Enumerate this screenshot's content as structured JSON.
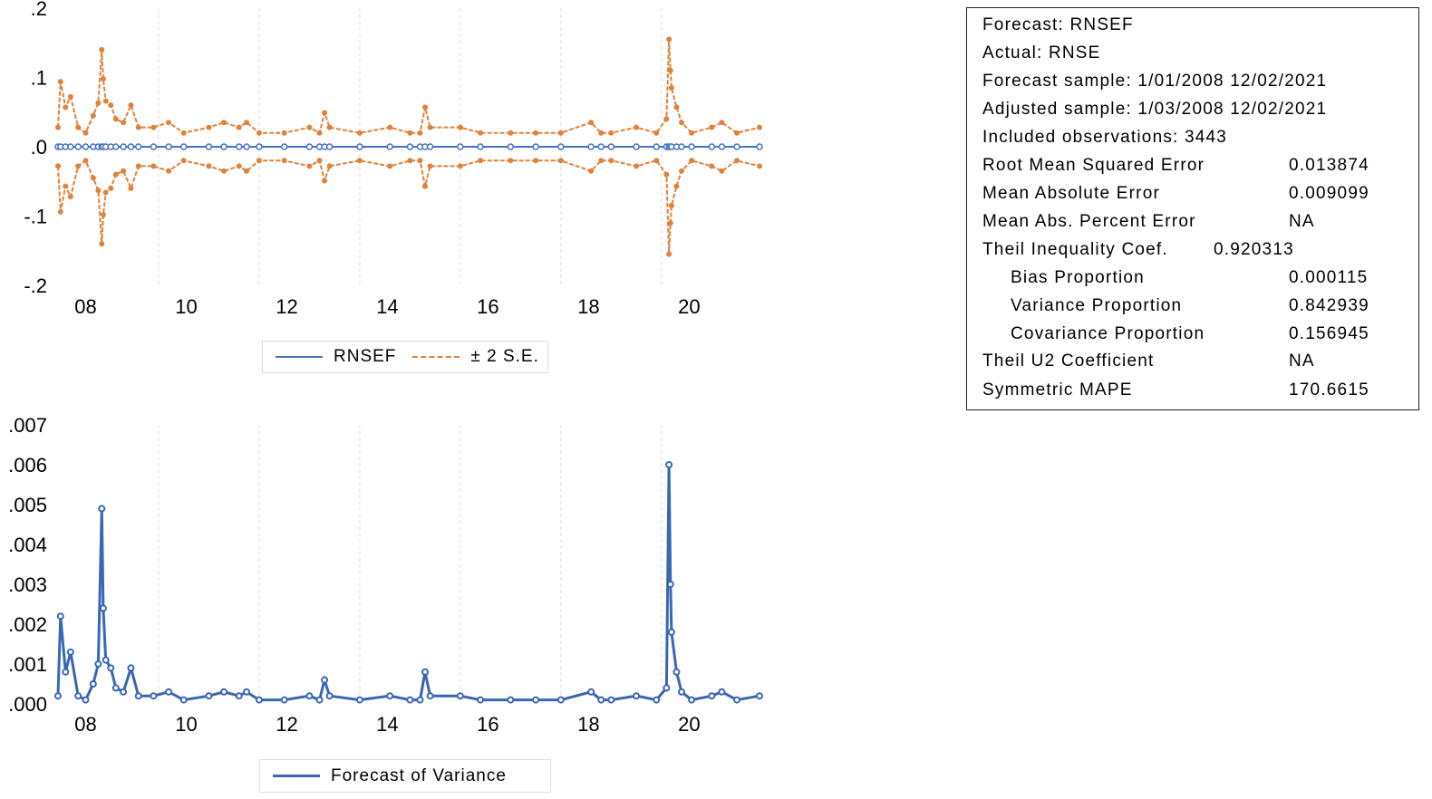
{
  "colors": {
    "forecast": "#4472c4",
    "band": "#e0823a",
    "variance": "#3a66b4",
    "grid": "#dddddd"
  },
  "chart_data": [
    {
      "type": "line",
      "xlim": [
        2008.0,
        2021.95
      ],
      "ylim": [
        -0.2,
        0.2
      ],
      "yticks": [
        ".2",
        ".1",
        ".0",
        "-.1",
        "-.2"
      ],
      "ytick_values": [
        0.2,
        0.1,
        0.0,
        -0.1,
        -0.2
      ],
      "xticks": [
        "08",
        "10",
        "12",
        "14",
        "16",
        "18",
        "20"
      ],
      "grid": "vertical dashed",
      "legend_position": "bottom",
      "x": [
        2008.0,
        2008.05,
        2008.15,
        2008.25,
        2008.4,
        2008.55,
        2008.7,
        2008.8,
        2008.87,
        2008.9,
        2008.95,
        2009.05,
        2009.15,
        2009.3,
        2009.45,
        2009.6,
        2009.9,
        2010.2,
        2010.5,
        2011.0,
        2011.3,
        2011.6,
        2011.75,
        2012.0,
        2012.5,
        2013.0,
        2013.2,
        2013.3,
        2013.4,
        2014.0,
        2014.6,
        2015.0,
        2015.2,
        2015.3,
        2015.4,
        2016.0,
        2016.4,
        2017.0,
        2017.5,
        2018.0,
        2018.6,
        2018.8,
        2019.0,
        2019.5,
        2019.9,
        2020.1,
        2020.15,
        2020.18,
        2020.2,
        2020.3,
        2020.4,
        2020.6,
        2021.0,
        2021.2,
        2021.5,
        2021.95
      ],
      "series": [
        {
          "name": "RNSEF",
          "values": [
            0,
            0,
            0,
            0,
            0,
            0,
            0,
            0,
            0,
            0,
            0,
            0,
            0,
            0,
            0,
            0,
            0,
            0,
            0,
            0,
            0,
            0,
            0,
            0,
            0,
            0,
            0,
            0,
            0,
            0,
            0,
            0,
            0,
            0,
            0,
            0,
            0,
            0,
            0,
            0,
            0,
            0,
            0,
            0,
            0,
            0,
            0,
            0,
            0,
            0,
            0,
            0,
            0,
            0,
            0,
            0
          ]
        },
        {
          "name": "± 2 S.E.",
          "upper": [
            0.028,
            0.094,
            0.057,
            0.072,
            0.028,
            0.02,
            0.045,
            0.063,
            0.14,
            0.098,
            0.066,
            0.06,
            0.04,
            0.035,
            0.06,
            0.028,
            0.028,
            0.035,
            0.02,
            0.028,
            0.035,
            0.028,
            0.035,
            0.02,
            0.02,
            0.028,
            0.02,
            0.049,
            0.028,
            0.02,
            0.028,
            0.02,
            0.02,
            0.057,
            0.028,
            0.028,
            0.02,
            0.02,
            0.02,
            0.02,
            0.035,
            0.02,
            0.02,
            0.028,
            0.02,
            0.04,
            0.155,
            0.11,
            0.085,
            0.057,
            0.035,
            0.02,
            0.028,
            0.035,
            0.02,
            0.028
          ]
        }
      ]
    },
    {
      "type": "line",
      "xlim": [
        2008.0,
        2021.95
      ],
      "ylim": [
        0.0,
        0.007
      ],
      "yticks": [
        ".007",
        ".006",
        ".005",
        ".004",
        ".003",
        ".002",
        ".001",
        ".000"
      ],
      "ytick_values": [
        0.007,
        0.006,
        0.005,
        0.004,
        0.003,
        0.002,
        0.001,
        0.0
      ],
      "xticks": [
        "08",
        "10",
        "12",
        "14",
        "16",
        "18",
        "20"
      ],
      "grid": "vertical dashed",
      "legend_position": "bottom",
      "x": [
        2008.0,
        2008.05,
        2008.15,
        2008.25,
        2008.4,
        2008.55,
        2008.7,
        2008.8,
        2008.87,
        2008.9,
        2008.95,
        2009.05,
        2009.15,
        2009.3,
        2009.45,
        2009.6,
        2009.9,
        2010.2,
        2010.5,
        2011.0,
        2011.3,
        2011.6,
        2011.75,
        2012.0,
        2012.5,
        2013.0,
        2013.2,
        2013.3,
        2013.4,
        2014.0,
        2014.6,
        2015.0,
        2015.2,
        2015.3,
        2015.4,
        2016.0,
        2016.4,
        2017.0,
        2017.5,
        2018.0,
        2018.6,
        2018.8,
        2019.0,
        2019.5,
        2019.9,
        2020.1,
        2020.15,
        2020.18,
        2020.2,
        2020.3,
        2020.4,
        2020.6,
        2021.0,
        2021.2,
        2021.5,
        2021.95
      ],
      "series": [
        {
          "name": "Forecast of Variance",
          "values": [
            0.0002,
            0.0022,
            0.0008,
            0.0013,
            0.0002,
            0.0001,
            0.0005,
            0.001,
            0.0049,
            0.0024,
            0.0011,
            0.0009,
            0.0004,
            0.0003,
            0.0009,
            0.0002,
            0.0002,
            0.0003,
            0.0001,
            0.0002,
            0.0003,
            0.0002,
            0.0003,
            0.0001,
            0.0001,
            0.0002,
            0.0001,
            0.0006,
            0.0002,
            0.0001,
            0.0002,
            0.0001,
            0.0001,
            0.0008,
            0.0002,
            0.0002,
            0.0001,
            0.0001,
            0.0001,
            0.0001,
            0.0003,
            0.0001,
            0.0001,
            0.0002,
            0.0001,
            0.0004,
            0.006,
            0.003,
            0.0018,
            0.0008,
            0.0003,
            0.0001,
            0.0002,
            0.0003,
            0.0001,
            0.0002
          ]
        }
      ]
    }
  ],
  "legend_top": {
    "forecast": "RNSEF",
    "band": "± 2 S.E."
  },
  "legend_bottom": {
    "variance": "Forecast of Variance"
  },
  "stats": {
    "forecast": "Forecast: RNSEF",
    "actual": "Actual: RNSE",
    "forecast_sample": "Forecast sample: 1/01/2008 12/02/2021",
    "adjusted_sample": "Adjusted sample: 1/03/2008 12/02/2021",
    "included": "Included observations: 3443",
    "rows": [
      {
        "label": "Root Mean Squared Error",
        "value": "0.013874"
      },
      {
        "label": "Mean Absolute Error",
        "value": "0.009099"
      },
      {
        "label": "Mean Abs. Percent Error",
        "value": "NA"
      },
      {
        "label": "Theil Inequality Coef.",
        "value": "0.920313"
      },
      {
        "label": "Bias Proportion",
        "value": "0.000115"
      },
      {
        "label": "Variance Proportion",
        "value": "0.842939"
      },
      {
        "label": "Covariance Proportion",
        "value": "0.156945"
      },
      {
        "label": "Theil U2 Coefficient",
        "value": "NA"
      },
      {
        "label": "Symmetric MAPE",
        "value": "170.6615"
      }
    ]
  }
}
